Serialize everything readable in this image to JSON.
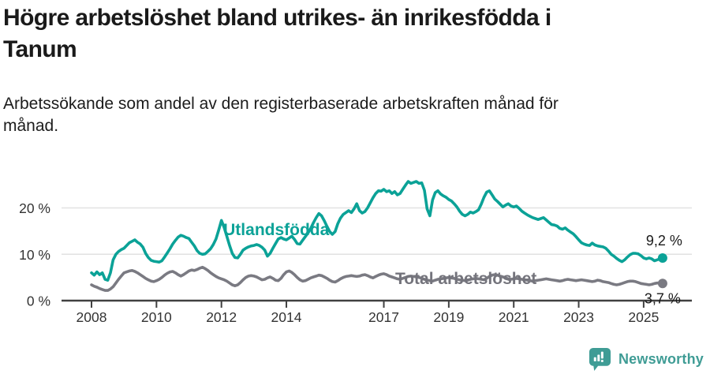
{
  "header": {
    "title_lines": [
      "Högre arbetslöshet bland utrikes- än inrikesfödda i",
      "Tanum"
    ],
    "subtitle_lines": [
      "Arbetssökande som andel av den registerbaserade arbetskraften månad för",
      "månad."
    ]
  },
  "footer": {
    "brand": "Newsworthy",
    "brand_color": "#3F9C95",
    "logo_icon": "speech-bubble-bar-chart-exclamation"
  },
  "chart_data": {
    "type": "line",
    "title": "Högre arbetslöshet bland utrikes- än inrikesfödda i Tanum",
    "subtitle": "Arbetssökande som andel av den registerbaserade arbetskraften månad för månad.",
    "x_unit": "month",
    "xlim": [
      2007.05,
      2026.5
    ],
    "ylim": [
      0,
      28.5
    ],
    "grid": "horizontal",
    "grid_color": "#E2E2E2",
    "axis_color": "#414141",
    "tick_text_color": "#333333",
    "end_label_color": "#1A1A1A",
    "x_ticks": [
      {
        "year": 2008,
        "label": "2008"
      },
      {
        "year": 2010,
        "label": "2010"
      },
      {
        "year": 2012,
        "label": "2012"
      },
      {
        "year": 2014,
        "label": "2014"
      },
      {
        "year": 2017,
        "label": "2017"
      },
      {
        "year": 2019,
        "label": "2019"
      },
      {
        "year": 2021,
        "label": "2021"
      },
      {
        "year": 2023,
        "label": "2023"
      },
      {
        "year": 2025,
        "label": "2025"
      }
    ],
    "y_ticks": [
      {
        "value": 0,
        "label": "0 %"
      },
      {
        "value": 10,
        "label": "10 %"
      },
      {
        "value": 20,
        "label": "20 %"
      }
    ],
    "series": [
      {
        "name": "Utlandsfödda",
        "color": "#0BA297",
        "label_color": "#0BA297",
        "label_anchor": {
          "year": 2012.06,
          "value": 14.1
        },
        "end_label": "9,2 %",
        "end_value": 9.2,
        "end_label_offset": [
          2,
          -16
        ],
        "start_year": 2008,
        "values": [
          6.0,
          5.5,
          6.2,
          5.6,
          6.0,
          4.6,
          4.4,
          6.0,
          8.8,
          10.0,
          10.6,
          11.0,
          11.3,
          11.9,
          12.5,
          12.8,
          13.1,
          12.6,
          12.2,
          11.5,
          10.2,
          9.3,
          8.7,
          8.5,
          8.4,
          8.3,
          8.6,
          9.4,
          10.3,
          11.2,
          12.2,
          13.0,
          13.7,
          14.1,
          13.9,
          13.6,
          13.4,
          12.6,
          11.8,
          10.8,
          10.2,
          10.0,
          10.1,
          10.6,
          11.2,
          12.1,
          13.3,
          15.2,
          17.3,
          15.8,
          13.9,
          11.9,
          10.2,
          9.3,
          9.2,
          10.0,
          10.9,
          11.3,
          11.6,
          11.8,
          11.9,
          12.1,
          11.9,
          11.5,
          10.9,
          9.6,
          10.2,
          11.3,
          12.3,
          13.3,
          13.6,
          13.3,
          13.1,
          13.5,
          13.9,
          13.2,
          12.3,
          12.2,
          13.0,
          13.8,
          14.6,
          15.6,
          16.8,
          17.9,
          18.8,
          18.3,
          17.2,
          16.0,
          14.9,
          14.3,
          14.9,
          16.6,
          17.8,
          18.6,
          19.0,
          19.4,
          19.0,
          19.8,
          20.9,
          19.4,
          18.9,
          19.2,
          20.0,
          21.1,
          22.2,
          23.1,
          23.7,
          23.6,
          24.0,
          23.5,
          23.7,
          23.1,
          23.5,
          22.8,
          23.1,
          24.0,
          24.9,
          25.7,
          25.3,
          25.5,
          25.7,
          25.3,
          25.4,
          23.8,
          19.8,
          18.3,
          21.7,
          23.3,
          23.7,
          23.0,
          22.6,
          22.3,
          21.8,
          21.5,
          20.9,
          20.2,
          19.3,
          18.6,
          18.3,
          18.6,
          19.1,
          18.9,
          19.2,
          19.6,
          20.8,
          22.3,
          23.4,
          23.7,
          22.8,
          21.9,
          21.4,
          20.8,
          20.2,
          20.6,
          20.9,
          20.4,
          20.2,
          20.4,
          19.9,
          19.3,
          18.9,
          18.5,
          18.2,
          17.9,
          17.7,
          17.5,
          17.7,
          17.9,
          17.4,
          16.9,
          16.4,
          16.3,
          16.1,
          15.6,
          15.4,
          15.7,
          15.2,
          14.8,
          14.4,
          13.8,
          13.1,
          12.5,
          12.2,
          12.0,
          11.9,
          12.4,
          12.0,
          11.8,
          11.7,
          11.6,
          11.3,
          10.7,
          10.0,
          9.6,
          9.1,
          8.7,
          8.4,
          8.8,
          9.4,
          9.9,
          10.2,
          10.2,
          10.1,
          9.7,
          9.2,
          9.0,
          9.2,
          9.0,
          8.6,
          8.8,
          9.0,
          9.2
        ]
      },
      {
        "name": "Total arbetslöshet",
        "color": "#7A7A82",
        "label_color": "#74747C",
        "label_anchor": {
          "year": 2017.35,
          "value": 3.55
        },
        "end_label": "3,7 %",
        "end_value": 3.7,
        "end_label_offset": [
          0,
          25
        ],
        "start_year": 2008,
        "values": [
          3.4,
          3.1,
          2.9,
          2.6,
          2.4,
          2.2,
          2.2,
          2.5,
          3.0,
          3.8,
          4.6,
          5.3,
          6.0,
          6.2,
          6.4,
          6.5,
          6.3,
          6.0,
          5.6,
          5.2,
          4.8,
          4.5,
          4.2,
          4.1,
          4.3,
          4.6,
          5.0,
          5.5,
          5.9,
          6.2,
          6.3,
          6.0,
          5.6,
          5.3,
          5.6,
          6.0,
          6.4,
          6.6,
          6.5,
          6.7,
          7.0,
          7.2,
          6.9,
          6.5,
          6.0,
          5.6,
          5.2,
          4.9,
          4.7,
          4.5,
          4.2,
          3.8,
          3.4,
          3.2,
          3.4,
          3.9,
          4.5,
          5.0,
          5.3,
          5.4,
          5.3,
          5.1,
          4.8,
          4.5,
          4.6,
          4.9,
          5.1,
          4.8,
          4.4,
          4.3,
          4.8,
          5.6,
          6.2,
          6.4,
          6.1,
          5.6,
          5.0,
          4.5,
          4.2,
          4.3,
          4.6,
          4.9,
          5.1,
          5.3,
          5.5,
          5.4,
          5.1,
          4.8,
          4.4,
          4.1,
          4.0,
          4.3,
          4.7,
          5.0,
          5.2,
          5.3,
          5.4,
          5.3,
          5.2,
          5.3,
          5.5,
          5.6,
          5.4,
          5.1,
          4.9,
          5.2,
          5.5,
          5.7,
          5.8,
          5.6,
          5.3,
          5.1,
          4.9,
          4.7,
          4.6,
          4.8,
          5.0,
          5.2,
          5.3,
          5.2,
          5.1,
          5.0,
          4.8,
          4.6,
          4.4,
          4.3,
          4.2,
          4.4,
          4.6,
          4.7,
          4.8,
          4.9,
          5.0,
          4.9,
          4.8,
          4.6,
          4.5,
          4.4,
          4.3,
          4.4,
          4.6,
          4.7,
          4.8,
          4.7,
          4.6,
          4.5,
          4.8,
          5.2,
          5.5,
          5.6,
          5.5,
          5.3,
          5.1,
          4.9,
          4.7,
          4.6,
          4.7,
          4.8,
          4.7,
          4.6,
          4.5,
          4.4,
          4.3,
          4.2,
          4.3,
          4.4,
          4.5,
          4.6,
          4.7,
          4.6,
          4.5,
          4.4,
          4.3,
          4.2,
          4.3,
          4.5,
          4.6,
          4.5,
          4.4,
          4.3,
          4.4,
          4.5,
          4.4,
          4.3,
          4.2,
          4.1,
          4.2,
          4.4,
          4.3,
          4.1,
          4.0,
          3.9,
          3.7,
          3.5,
          3.4,
          3.5,
          3.7,
          3.9,
          4.1,
          4.2,
          4.2,
          4.1,
          3.9,
          3.7,
          3.6,
          3.5,
          3.4,
          3.5,
          3.7,
          3.8,
          3.8,
          3.7
        ]
      }
    ]
  }
}
